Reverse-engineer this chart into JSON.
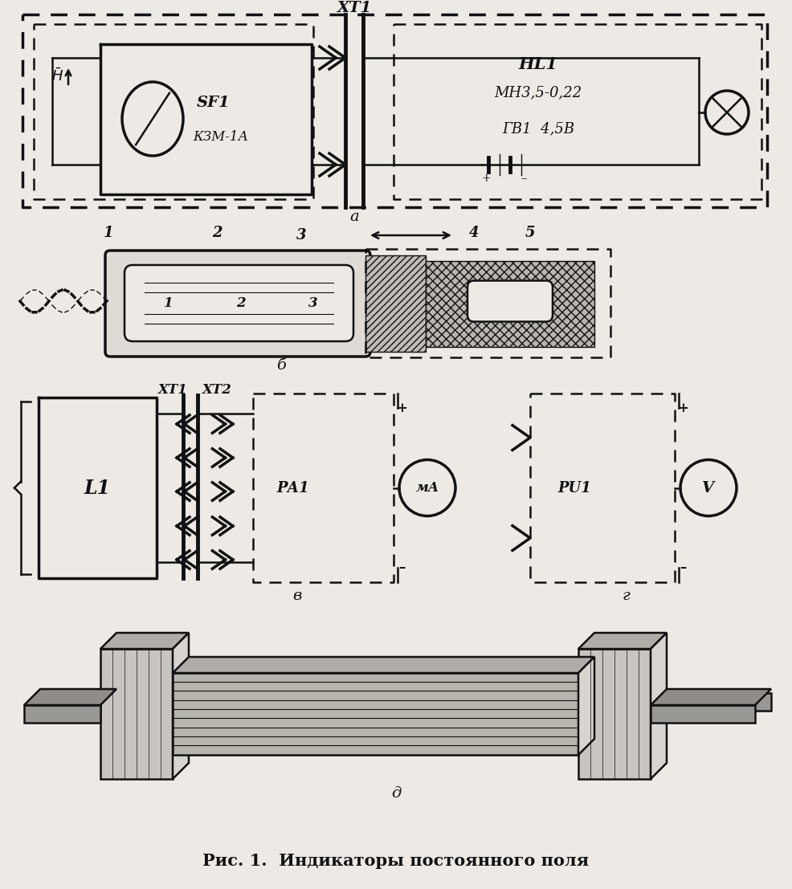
{
  "title": "Рис. 1.  Индикаторы постоянного поля",
  "bg": "#edeae5",
  "lc": "#111111",
  "xt1_label": "XT1",
  "sf1_label": "SF1",
  "sf1_sub": "КЗМ-1А",
  "hl1_label": "HL1",
  "hl1_sub": "МН3,5-0,22",
  "gb1_label": "ГВ1  4,5В",
  "panel_a": "а",
  "panel_b": "б",
  "panel_v": "в",
  "panel_g": "г",
  "panel_d": "д",
  "l1_label": "L1",
  "xt1_v": "XT1",
  "xt2_v": "XT2",
  "pa1_label": "РА1",
  "ma_label": "мА",
  "pu1_label": "РU1",
  "v_label": "V"
}
